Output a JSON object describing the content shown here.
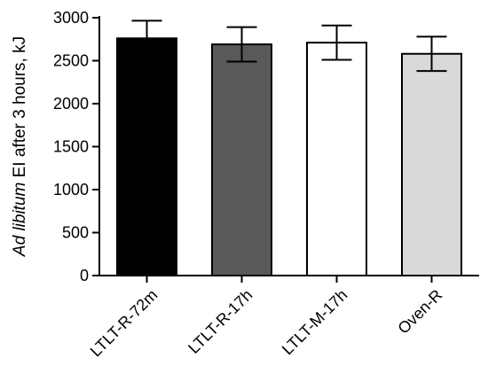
{
  "chart_data": {
    "type": "bar",
    "categories": [
      "LTLT-R-72m",
      "LTLT-R-17h",
      "LTLT-M-17h",
      "Oven-R"
    ],
    "values": [
      2760,
      2690,
      2710,
      2580
    ],
    "error": [
      205,
      200,
      200,
      200
    ],
    "colors": [
      "#000000",
      "#595959",
      "#ffffff",
      "#d9d9d9"
    ],
    "bar_edge_color": "#000000",
    "ylabel_italic": "Ad libitum",
    "ylabel_rest": " EI after 3 hours, kJ",
    "ylim": [
      0,
      3000
    ],
    "yticks": [
      0,
      500,
      1000,
      1500,
      2000,
      2500,
      3000
    ],
    "grid": false,
    "error_bars": true
  }
}
